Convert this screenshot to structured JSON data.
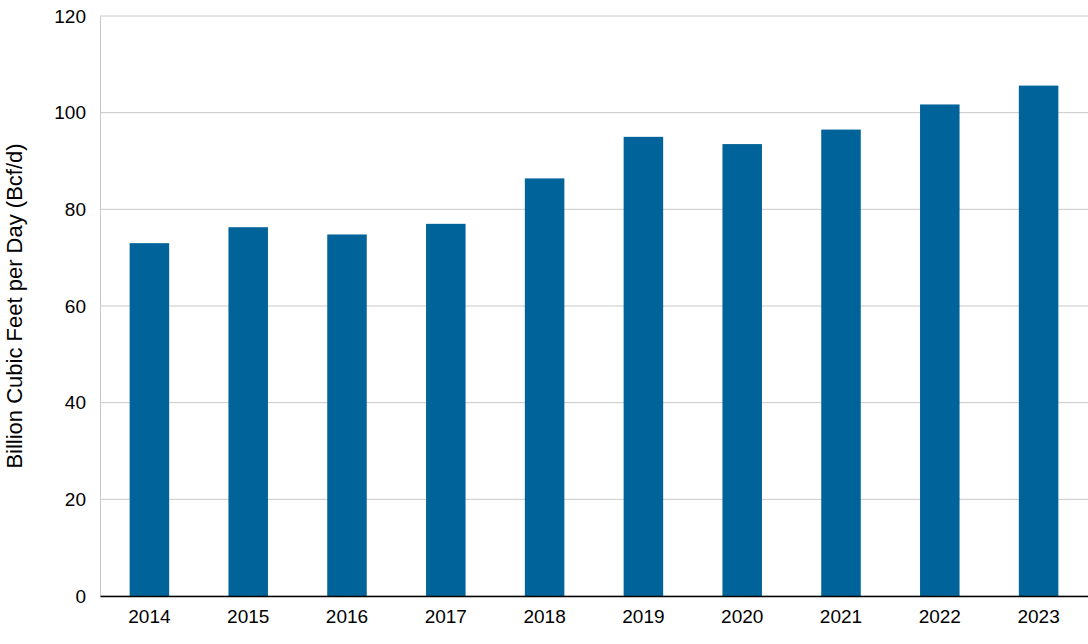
{
  "chart_data": {
    "type": "bar",
    "y_label": "Billion Cubic Feet per Day (Bcf/d)",
    "categories": [
      "2014",
      "2015",
      "2016",
      "2017",
      "2018",
      "2019",
      "2020",
      "2021",
      "2022",
      "2023"
    ],
    "values": [
      73,
      76.3,
      74.8,
      77,
      86.4,
      95,
      93.5,
      96.5,
      101.7,
      105.6
    ],
    "color": "#00649a",
    "ylim": [
      0,
      120
    ],
    "yticks": [
      0,
      20,
      40,
      60,
      80,
      100,
      120
    ],
    "grid": true
  }
}
